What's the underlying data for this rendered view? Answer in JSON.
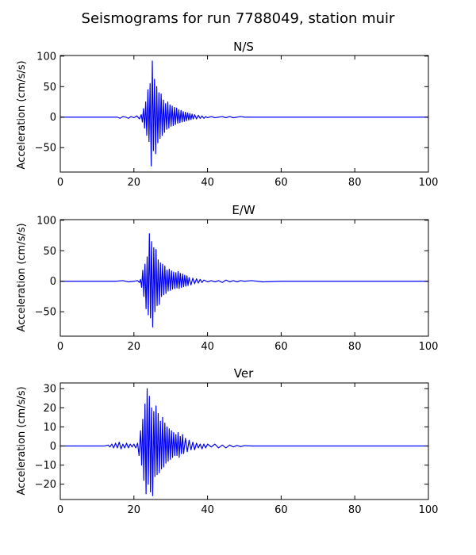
{
  "figure": {
    "title": "Seismograms for run 7788049, station muir"
  },
  "chart_data": [
    {
      "type": "line",
      "title": "N/S",
      "xlabel": "",
      "ylabel": "Acceleration (cm/s/s)",
      "xlim": [
        0,
        100
      ],
      "ylim": [
        -90,
        101
      ],
      "xticks": [
        0,
        20,
        40,
        60,
        80,
        100
      ],
      "yticks": [
        -50,
        0,
        50,
        100
      ],
      "tick_labels_x": [
        "0",
        "20",
        "40",
        "60",
        "80",
        "100"
      ],
      "tick_labels_y": [
        "−50",
        "0",
        "50",
        "100"
      ],
      "grid": false,
      "color": "#0000ff",
      "series": [
        {
          "x": [
            0,
            10,
            14,
            15.5,
            16.2,
            17,
            17.8,
            18.5,
            19.2,
            20,
            20.8,
            21.5,
            22,
            22.3,
            22.6,
            22.9,
            23.2,
            23.5,
            23.8,
            24.1,
            24.4,
            24.7,
            25,
            25.3,
            25.6,
            25.9,
            26.2,
            26.5,
            26.8,
            27.1,
            27.4,
            27.7,
            28,
            28.3,
            28.6,
            28.9,
            29.2,
            29.5,
            29.8,
            30.1,
            30.4,
            30.7,
            31,
            31.3,
            31.6,
            31.9,
            32.2,
            32.5,
            32.8,
            33.1,
            33.4,
            33.7,
            34,
            34.3,
            34.6,
            34.9,
            35.2,
            35.5,
            35.8,
            36.1,
            36.5,
            37,
            37.5,
            38,
            38.5,
            39,
            39.5,
            40,
            41,
            42,
            43,
            44,
            45,
            46,
            47,
            48,
            49,
            50,
            52,
            54,
            56,
            58,
            60,
            70,
            80,
            90,
            100
          ],
          "y": [
            0,
            0,
            0,
            0,
            -2,
            1,
            0,
            -2,
            1,
            -1,
            2,
            -3,
            4,
            -8,
            14,
            -18,
            25,
            -30,
            45,
            -40,
            55,
            -80,
            92,
            -55,
            62,
            -60,
            50,
            -42,
            40,
            -35,
            38,
            -30,
            28,
            -25,
            22,
            -20,
            25,
            -18,
            20,
            -15,
            18,
            -14,
            16,
            -12,
            15,
            -10,
            12,
            -9,
            11,
            -8,
            9,
            -7,
            8,
            -6,
            7,
            -5,
            6,
            -4,
            5,
            -3,
            4,
            -3,
            3,
            -2,
            2,
            -2,
            1,
            -1,
            1,
            -1,
            0,
            1,
            -1,
            1,
            -1,
            0,
            1,
            0,
            0,
            0,
            0,
            0,
            0,
            0,
            0,
            0,
            0
          ]
        }
      ]
    },
    {
      "type": "line",
      "title": "E/W",
      "xlabel": "",
      "ylabel": "Acceleration (cm/s/s)",
      "xlim": [
        0,
        100
      ],
      "ylim": [
        -90,
        101
      ],
      "xticks": [
        0,
        20,
        40,
        60,
        80,
        100
      ],
      "yticks": [
        -50,
        0,
        50,
        100
      ],
      "tick_labels_x": [
        "0",
        "20",
        "40",
        "60",
        "80",
        "100"
      ],
      "tick_labels_y": [
        "−50",
        "0",
        "50",
        "100"
      ],
      "grid": false,
      "color": "#0000ff",
      "series": [
        {
          "x": [
            0,
            10,
            15,
            17,
            18.5,
            20,
            21,
            21.5,
            21.8,
            22.1,
            22.4,
            22.7,
            23,
            23.3,
            23.6,
            23.9,
            24.2,
            24.5,
            24.8,
            25.1,
            25.4,
            25.7,
            26,
            26.3,
            26.6,
            26.9,
            27.2,
            27.5,
            27.8,
            28.1,
            28.4,
            28.7,
            29,
            29.3,
            29.6,
            29.9,
            30.2,
            30.5,
            30.8,
            31.1,
            31.4,
            31.7,
            32,
            32.3,
            32.6,
            32.9,
            33.2,
            33.5,
            33.8,
            34.1,
            34.4,
            34.7,
            35,
            35.5,
            36,
            36.5,
            37,
            37.5,
            38,
            38.5,
            39,
            40,
            41,
            42,
            43,
            44,
            45,
            46,
            47,
            48,
            49,
            50,
            52,
            55,
            60,
            70,
            80,
            90,
            100
          ],
          "y": [
            0,
            0,
            0,
            1,
            -1,
            0,
            1,
            -2,
            3,
            -10,
            18,
            -25,
            28,
            -45,
            40,
            -55,
            78,
            -60,
            65,
            -75,
            55,
            -50,
            52,
            -40,
            35,
            -38,
            30,
            -25,
            28,
            -22,
            25,
            -20,
            18,
            -16,
            20,
            -15,
            17,
            -13,
            15,
            -12,
            14,
            -11,
            16,
            -12,
            13,
            -10,
            12,
            -9,
            10,
            -8,
            9,
            -7,
            6,
            -6,
            5,
            -4,
            4,
            -3,
            3,
            -2,
            2,
            -1,
            1,
            -1,
            1,
            -2,
            2,
            -1,
            1,
            -1,
            1,
            0,
            1,
            -1,
            0,
            0,
            0,
            0,
            0
          ]
        }
      ]
    },
    {
      "type": "line",
      "title": "Ver",
      "xlabel": "",
      "ylabel": "Acceleration (cm/s/s)",
      "xlim": [
        0,
        100
      ],
      "ylim": [
        -28,
        33
      ],
      "xticks": [
        0,
        20,
        40,
        60,
        80,
        100
      ],
      "yticks": [
        -20,
        -10,
        0,
        10,
        20,
        30
      ],
      "tick_labels_x": [
        "0",
        "20",
        "40",
        "60",
        "80",
        "100"
      ],
      "tick_labels_y": [
        "−20",
        "−10",
        "0",
        "10",
        "20",
        "30"
      ],
      "grid": false,
      "color": "#0000ff",
      "series": [
        {
          "x": [
            0,
            12,
            13,
            13.5,
            14,
            14.5,
            15,
            15.5,
            16,
            16.5,
            17,
            17.5,
            18,
            18.5,
            19,
            19.5,
            20,
            20.5,
            21,
            21.4,
            21.8,
            22.1,
            22.4,
            22.7,
            23,
            23.3,
            23.6,
            23.9,
            24.2,
            24.5,
            24.8,
            25.1,
            25.4,
            25.7,
            26,
            26.3,
            26.6,
            26.9,
            27.2,
            27.5,
            27.8,
            28.1,
            28.4,
            28.7,
            29,
            29.3,
            29.6,
            29.9,
            30.2,
            30.5,
            30.8,
            31.1,
            31.4,
            31.7,
            32,
            32.3,
            32.6,
            32.9,
            33.2,
            33.5,
            34,
            34.5,
            35,
            35.5,
            36,
            36.5,
            37,
            37.5,
            38,
            38.5,
            39,
            39.5,
            40,
            41,
            42,
            43,
            44,
            45,
            46,
            47,
            48,
            49,
            50,
            52,
            55,
            58,
            60,
            70,
            80,
            90,
            100
          ],
          "y": [
            0,
            0,
            0.5,
            -0.5,
            1,
            -1,
            1.5,
            -1,
            2,
            -1.5,
            1,
            -1,
            1.5,
            -1,
            1,
            -0.5,
            1,
            -1,
            1.5,
            -5,
            8,
            -10,
            14,
            -18,
            22,
            -25,
            30,
            -20,
            26,
            -24,
            20,
            -26,
            18,
            -16,
            21,
            -15,
            17,
            -14,
            13,
            -12,
            15,
            -11,
            12,
            -9,
            10,
            -8,
            9,
            -7,
            8,
            -6,
            7,
            -5,
            6,
            -5,
            7,
            -6,
            5,
            -4,
            6,
            -4,
            4,
            -3,
            3,
            -2,
            2,
            -2,
            1.5,
            -1,
            1,
            -1.5,
            1,
            -1,
            1,
            -0.5,
            1,
            -1,
            0.5,
            -1,
            0.5,
            -0.5,
            0.3,
            -0.3,
            0.2,
            0,
            0,
            0,
            0,
            0,
            0,
            0,
            0
          ]
        }
      ]
    }
  ]
}
